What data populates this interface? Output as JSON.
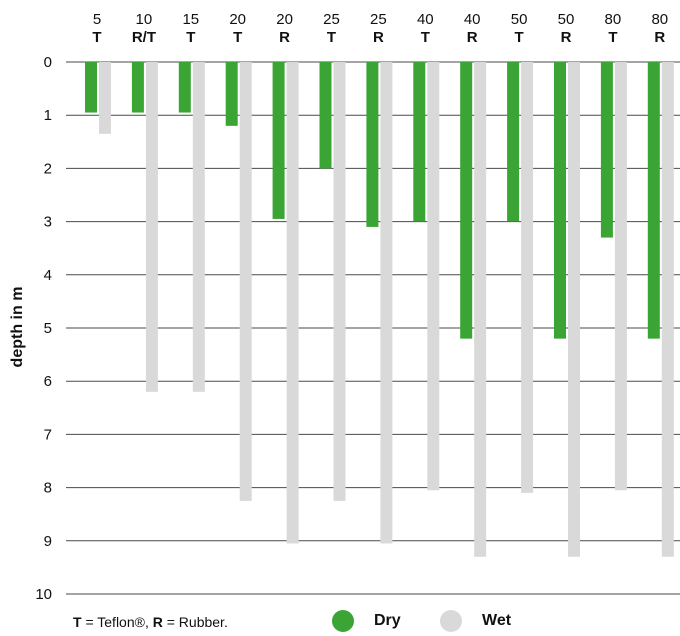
{
  "chart_data": {
    "type": "bar",
    "orientation": "vertical-down",
    "categories": [
      {
        "number": "5",
        "material": "T"
      },
      {
        "number": "10",
        "material": "R/T"
      },
      {
        "number": "15",
        "material": "T"
      },
      {
        "number": "20",
        "material": "T"
      },
      {
        "number": "20",
        "material": "R"
      },
      {
        "number": "25",
        "material": "T"
      },
      {
        "number": "25",
        "material": "R"
      },
      {
        "number": "40",
        "material": "T"
      },
      {
        "number": "40",
        "material": "R"
      },
      {
        "number": "50",
        "material": "T"
      },
      {
        "number": "50",
        "material": "R"
      },
      {
        "number": "80",
        "material": "T"
      },
      {
        "number": "80",
        "material": "R"
      }
    ],
    "series": [
      {
        "name": "Dry",
        "color": "#3aa535",
        "values": [
          0.95,
          0.95,
          0.95,
          1.2,
          2.95,
          2.0,
          3.1,
          3.0,
          5.2,
          3.0,
          5.2,
          3.3,
          5.2
        ]
      },
      {
        "name": "Wet",
        "color": "#d9d9d9",
        "values": [
          1.35,
          6.2,
          6.2,
          8.25,
          9.05,
          8.25,
          9.05,
          8.05,
          9.3,
          8.1,
          9.3,
          8.05,
          9.3
        ]
      }
    ],
    "ylabel": "depth in m",
    "ylim": [
      0,
      10
    ],
    "yticks": [
      "0",
      "1",
      "2",
      "3",
      "4",
      "5",
      "6",
      "7",
      "8",
      "9",
      "10"
    ],
    "y_axis_inverted": true,
    "grid": true,
    "legend_position": "bottom"
  },
  "footer": {
    "note_t_key": "T",
    "note_t_text": " = Teflon®, ",
    "note_r_key": "R",
    "note_r_text": " = Rubber.",
    "legend_dry_label": "Dry",
    "legend_wet_label": "Wet",
    "dry_color": "#3aa535",
    "wet_color": "#d9d9d9"
  }
}
